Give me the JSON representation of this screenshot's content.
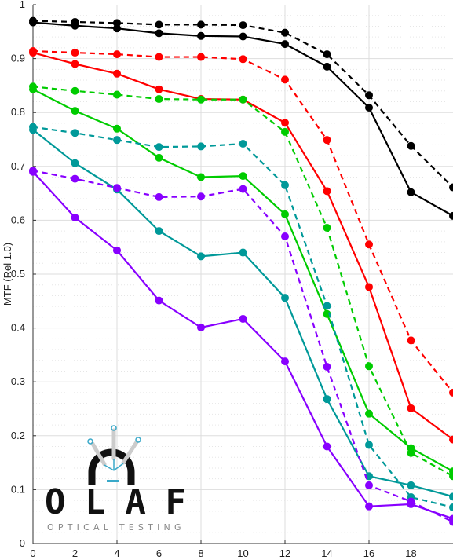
{
  "chart_data": {
    "type": "line",
    "ylabel": "MTF (Rel 1.0)",
    "xlabel": "",
    "xlim": [
      0,
      20
    ],
    "ylim": [
      0,
      1
    ],
    "xticks": [
      "0",
      "2",
      "4",
      "6",
      "8",
      "10",
      "12",
      "14",
      "16",
      "18"
    ],
    "yticks": [
      "0",
      "0.1",
      "0.2",
      "0.3",
      "0.4",
      "0.5",
      "0.6",
      "0.7",
      "0.8",
      "0.9",
      "1"
    ],
    "grid": true,
    "x": [
      0,
      2,
      4,
      6,
      8,
      10,
      12,
      14,
      16,
      18,
      20
    ],
    "series": [
      {
        "color": "#000000",
        "dashed": true,
        "values": [
          0.97,
          0.968,
          0.966,
          0.963,
          0.963,
          0.962,
          0.948,
          0.908,
          0.832,
          0.738,
          0.661
        ]
      },
      {
        "color": "#000000",
        "dashed": false,
        "values": [
          0.967,
          0.961,
          0.956,
          0.947,
          0.942,
          0.941,
          0.927,
          0.885,
          0.809,
          0.652,
          0.608
        ]
      },
      {
        "color": "#ff0000",
        "dashed": true,
        "values": [
          0.914,
          0.911,
          0.908,
          0.903,
          0.903,
          0.899,
          0.861,
          0.749,
          0.555,
          0.377,
          0.28
        ]
      },
      {
        "color": "#ff0000",
        "dashed": false,
        "values": [
          0.911,
          0.89,
          0.872,
          0.843,
          0.825,
          0.824,
          0.781,
          0.654,
          0.476,
          0.251,
          0.193
        ]
      },
      {
        "color": "#00cc00",
        "dashed": true,
        "values": [
          0.848,
          0.84,
          0.833,
          0.825,
          0.824,
          0.824,
          0.764,
          0.586,
          0.329,
          0.168,
          0.125
        ]
      },
      {
        "color": "#00cc00",
        "dashed": false,
        "values": [
          0.843,
          0.803,
          0.77,
          0.716,
          0.68,
          0.682,
          0.611,
          0.426,
          0.241,
          0.177,
          0.134
        ]
      },
      {
        "color": "#009999",
        "dashed": true,
        "values": [
          0.773,
          0.762,
          0.749,
          0.736,
          0.737,
          0.742,
          0.665,
          0.441,
          0.183,
          0.086,
          0.067
        ]
      },
      {
        "color": "#009999",
        "dashed": false,
        "values": [
          0.768,
          0.706,
          0.657,
          0.58,
          0.533,
          0.54,
          0.456,
          0.268,
          0.125,
          0.108,
          0.087
        ]
      },
      {
        "color": "#8800ff",
        "dashed": true,
        "values": [
          0.692,
          0.677,
          0.66,
          0.643,
          0.644,
          0.658,
          0.57,
          0.328,
          0.108,
          0.078,
          0.04
        ]
      },
      {
        "color": "#8800ff",
        "dashed": false,
        "values": [
          0.69,
          0.605,
          0.544,
          0.451,
          0.401,
          0.417,
          0.338,
          0.18,
          0.069,
          0.073,
          0.046
        ]
      }
    ]
  },
  "logo": {
    "text": "OLAF",
    "subtitle": "OPTICAL TESTING",
    "accent_color": "#3aa9c9"
  }
}
